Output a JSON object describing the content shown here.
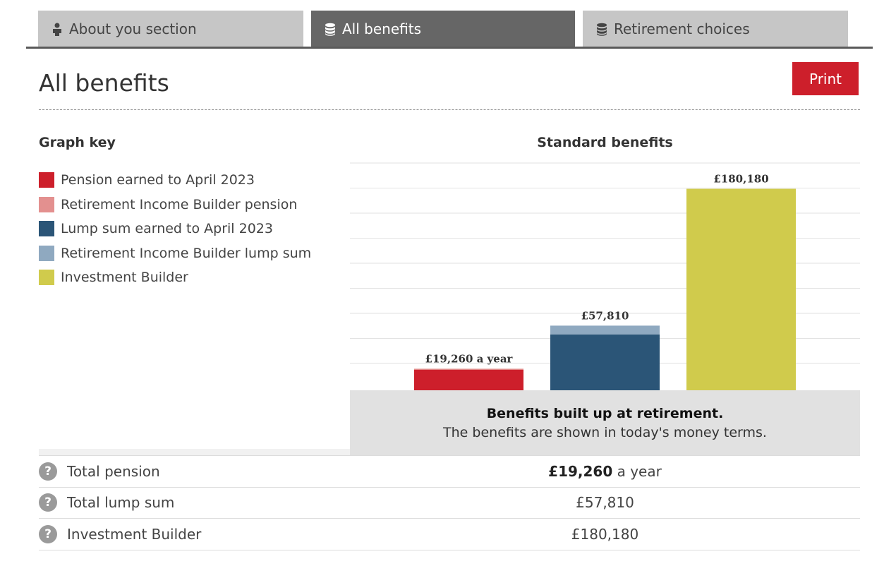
{
  "tabs": [
    {
      "label": "About you section",
      "icon": "person-icon",
      "active": false
    },
    {
      "label": "All benefits",
      "icon": "coin-stack-icon",
      "active": true
    },
    {
      "label": "Retirement choices",
      "icon": "coin-stack-icon",
      "active": false
    }
  ],
  "page": {
    "title": "All benefits",
    "print_label": "Print"
  },
  "graph_key": {
    "title": "Graph key",
    "items": [
      {
        "label": "Pension earned to April 2023",
        "color": "#cd1f2b"
      },
      {
        "label": "Retirement Income Builder pension",
        "color": "#e3908f"
      },
      {
        "label": "Lump sum earned to April 2023",
        "color": "#2b5577"
      },
      {
        "label": "Retirement Income Builder lump sum",
        "color": "#8fa9c0"
      },
      {
        "label": "Investment Builder",
        "color": "#d0cb4c"
      }
    ]
  },
  "chart_data": {
    "type": "bar",
    "title": "Standard benefits",
    "stacked": true,
    "categories": [
      "Total pension",
      "Total lump sum",
      "Investment Builder"
    ],
    "series": [
      {
        "name": "Pension earned to April 2023",
        "color": "#cd1f2b",
        "values": [
          18300,
          0,
          0
        ]
      },
      {
        "name": "Retirement Income Builder pension",
        "color": "#e3908f",
        "values": [
          960,
          0,
          0
        ]
      },
      {
        "name": "Lump sum earned to April 2023",
        "color": "#2b5577",
        "values": [
          0,
          49930,
          0
        ]
      },
      {
        "name": "Retirement Income Builder lump sum",
        "color": "#8fa9c0",
        "values": [
          0,
          7880,
          0
        ]
      },
      {
        "name": "Investment Builder",
        "color": "#d0cb4c",
        "values": [
          0,
          0,
          180180
        ]
      }
    ],
    "data_labels": [
      "£19,260 a year",
      "£57,810",
      "£180,180"
    ],
    "ylim": [
      0,
      207000
    ],
    "grid": true
  },
  "caption": {
    "strong": "Benefits built up at retirement.",
    "sub": "The benefits are shown in today's money terms."
  },
  "summary": [
    {
      "label": "Total pension",
      "value_strong": "£19,260",
      "value_suffix": " a year"
    },
    {
      "label": "Total lump sum",
      "value_strong": "",
      "value_suffix": "£57,810"
    },
    {
      "label": "Investment Builder",
      "value_strong": "",
      "value_suffix": "£180,180"
    }
  ],
  "help_glyph": "?"
}
